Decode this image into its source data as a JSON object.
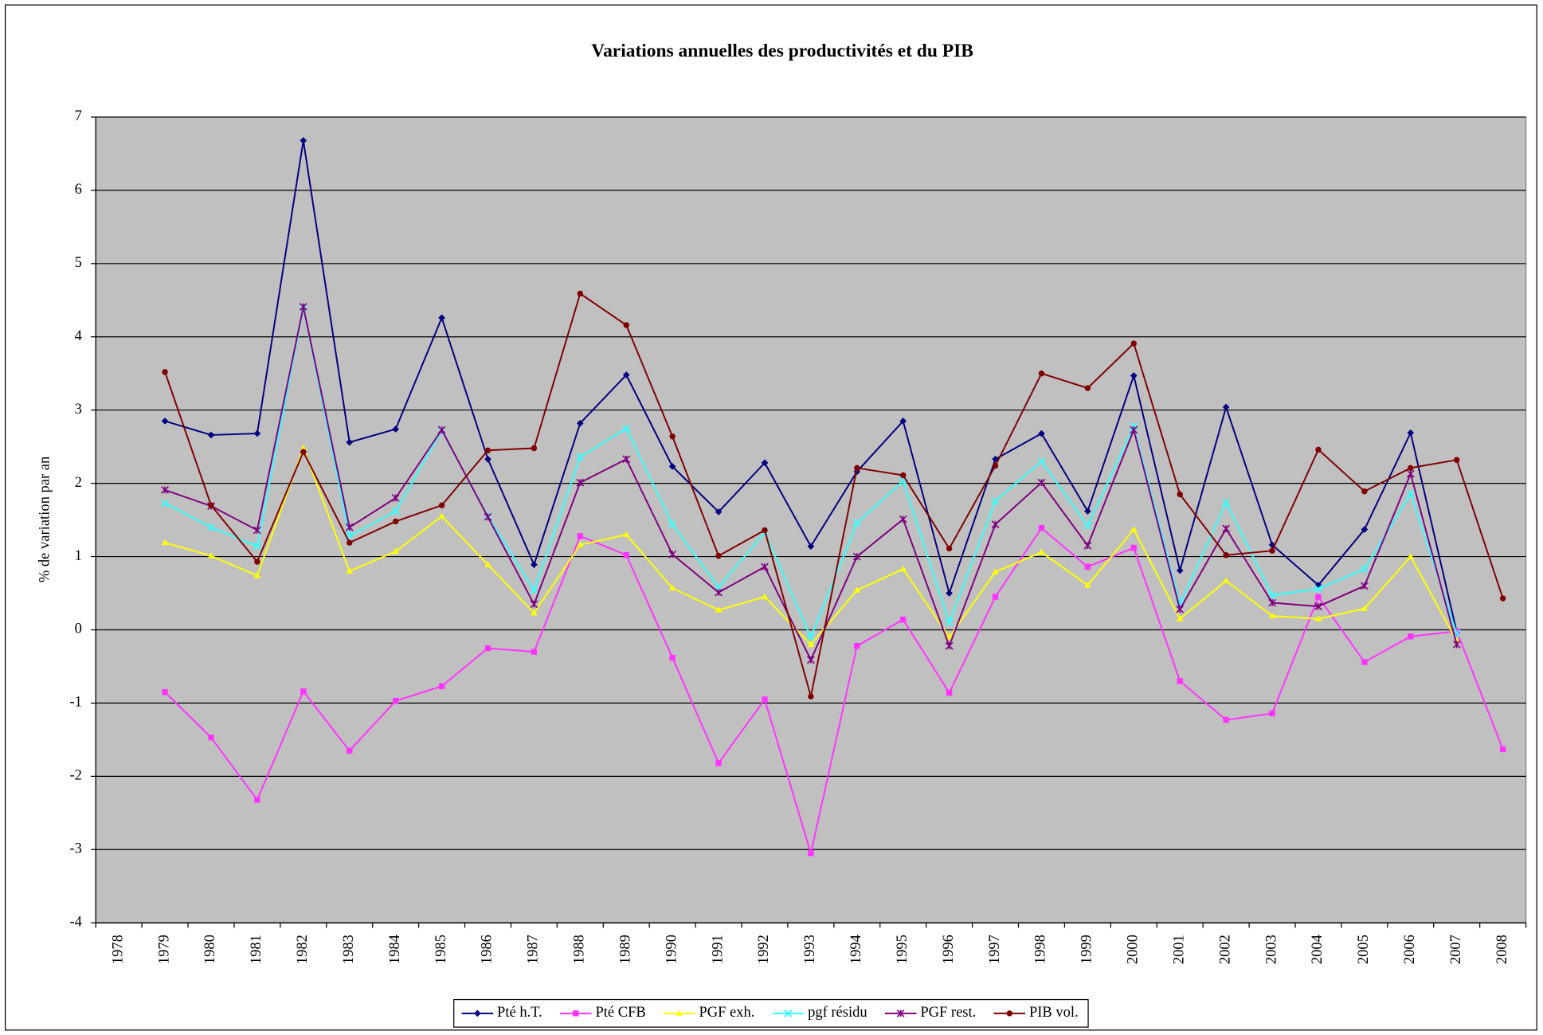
{
  "chart_data": {
    "type": "line",
    "title": "Variations annuelles des productivités et du PIB",
    "y_label": "% de variation par an",
    "categories": [
      "1978",
      "1979",
      "1980",
      "1981",
      "1982",
      "1983",
      "1984",
      "1985",
      "1986",
      "1987",
      "1988",
      "1989",
      "1990",
      "1991",
      "1992",
      "1993",
      "1994",
      "1995",
      "1996",
      "1997",
      "1998",
      "1999",
      "2000",
      "2001",
      "2002",
      "2003",
      "2004",
      "2005",
      "2006",
      "2007",
      "2008"
    ],
    "ylim": [
      -4,
      7
    ],
    "yticks": [
      -4,
      -3,
      -2,
      -1,
      0,
      1,
      2,
      3,
      4,
      5,
      6,
      7
    ],
    "grid": true,
    "legend": "bottom",
    "background": "#c0c0c0",
    "series": [
      {
        "name": "Pté h.T.",
        "color": "#000080",
        "marker": "diamond",
        "values": [
          null,
          2.85,
          2.66,
          2.68,
          6.68,
          2.56,
          2.74,
          4.26,
          2.33,
          0.89,
          2.82,
          3.48,
          2.23,
          1.61,
          2.28,
          1.14,
          2.16,
          2.85,
          0.5,
          2.33,
          2.68,
          1.62,
          3.47,
          0.81,
          3.04,
          1.16,
          0.61,
          1.37,
          2.69,
          -0.03,
          null
        ]
      },
      {
        "name": "Pté CFB",
        "color": "#ff33ff",
        "marker": "square",
        "values": [
          null,
          -0.85,
          -1.47,
          -2.32,
          -0.84,
          -1.65,
          -0.97,
          -0.77,
          -0.25,
          -0.3,
          1.28,
          1.02,
          -0.38,
          -1.82,
          -0.95,
          -3.05,
          -0.22,
          0.14,
          -0.86,
          0.45,
          1.39,
          0.86,
          1.12,
          -0.7,
          -1.23,
          -1.14,
          0.45,
          -0.44,
          -0.09,
          -0.02,
          -1.63
        ]
      },
      {
        "name": "PGF exh.",
        "color": "#ffff00",
        "marker": "triangle",
        "values": [
          null,
          1.19,
          1.01,
          0.74,
          2.48,
          0.8,
          1.07,
          1.55,
          0.89,
          0.23,
          1.16,
          1.3,
          0.57,
          0.27,
          0.45,
          -0.2,
          0.54,
          0.83,
          -0.1,
          0.79,
          1.06,
          0.61,
          1.37,
          0.15,
          0.67,
          0.19,
          0.15,
          0.29,
          1.0,
          -0.15,
          null
        ]
      },
      {
        "name": "pgf résidu",
        "color": "#33ffff",
        "marker": "cross",
        "values": [
          null,
          1.73,
          1.4,
          1.14,
          4.4,
          1.28,
          1.62,
          2.72,
          1.55,
          0.54,
          2.36,
          2.75,
          1.44,
          0.58,
          1.33,
          -0.1,
          1.46,
          2.03,
          0.1,
          1.76,
          2.3,
          1.42,
          2.78,
          0.35,
          1.74,
          0.47,
          0.56,
          0.83,
          1.86,
          -0.05,
          null
        ]
      },
      {
        "name": "PGF rest.",
        "color": "#800080",
        "marker": "star",
        "values": [
          null,
          1.91,
          1.69,
          1.36,
          4.41,
          1.4,
          1.8,
          2.73,
          1.54,
          0.35,
          2.01,
          2.33,
          1.03,
          0.51,
          0.86,
          -0.41,
          1.0,
          1.51,
          -0.22,
          1.44,
          2.01,
          1.15,
          2.73,
          0.28,
          1.38,
          0.37,
          0.32,
          0.6,
          2.13,
          -0.2,
          null
        ]
      },
      {
        "name": "PIB vol.",
        "color": "#800000",
        "marker": "circle",
        "values": [
          null,
          3.52,
          1.7,
          0.93,
          2.43,
          1.19,
          1.48,
          1.7,
          2.45,
          2.48,
          4.59,
          4.16,
          2.64,
          1.01,
          1.36,
          -0.91,
          2.21,
          2.11,
          1.11,
          2.24,
          3.5,
          3.3,
          3.91,
          1.85,
          1.02,
          1.08,
          2.46,
          1.89,
          2.21,
          2.32,
          0.43
        ]
      }
    ]
  }
}
